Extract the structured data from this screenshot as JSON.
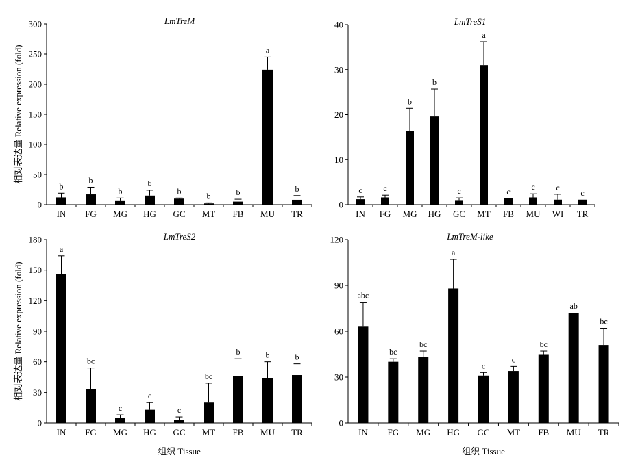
{
  "chart_data": [
    {
      "type": "bar",
      "title": "LmTreM",
      "ylabel": "相对表达量 Relative expression (fold)",
      "xlabel": "",
      "ylim": [
        0,
        300
      ],
      "yticks": [
        0,
        50,
        100,
        150,
        200,
        250,
        300
      ],
      "categories": [
        "IN",
        "FG",
        "MG",
        "HG",
        "GC",
        "MT",
        "FB",
        "MU",
        "TR"
      ],
      "values": [
        12,
        17,
        7,
        15,
        10,
        2,
        5,
        224,
        8
      ],
      "errors": [
        7,
        12,
        4,
        9,
        1,
        1,
        4,
        21,
        7
      ],
      "letters": [
        "b",
        "b",
        "b",
        "b",
        "b",
        "b",
        "b",
        "a",
        "b"
      ]
    },
    {
      "type": "bar",
      "title": "LmTreS1",
      "ylabel": "",
      "xlabel": "",
      "ylim": [
        0,
        40
      ],
      "yticks": [
        0,
        10,
        20,
        30,
        40
      ],
      "categories": [
        "IN",
        "FG",
        "MG",
        "HG",
        "GC",
        "MT",
        "FB",
        "MU",
        "WI",
        "TR"
      ],
      "values": [
        1.2,
        1.6,
        16.3,
        19.6,
        1.0,
        31.0,
        1.4,
        1.6,
        1.1,
        1.1
      ],
      "errors": [
        0.5,
        0.5,
        5.1,
        6.1,
        0.5,
        5.2,
        0.0,
        0.8,
        1.2,
        0.0
      ],
      "letters": [
        "c",
        "c",
        "b",
        "b",
        "c",
        "a",
        "c",
        "c",
        "c",
        "c"
      ]
    },
    {
      "type": "bar",
      "title": "LmTreS2",
      "ylabel": "相对表达量 Relative expression (fold)",
      "xlabel": "组织 Tissue",
      "ylim": [
        0,
        180
      ],
      "yticks": [
        0,
        30,
        60,
        90,
        120,
        150,
        180
      ],
      "categories": [
        "IN",
        "FG",
        "MG",
        "HG",
        "GC",
        "MT",
        "FB",
        "MU",
        "TR"
      ],
      "values": [
        146,
        33,
        5,
        13,
        3,
        20,
        46,
        44,
        47
      ],
      "errors": [
        18,
        21,
        3,
        7,
        3,
        19,
        17,
        16,
        11
      ],
      "letters": [
        "a",
        "bc",
        "c",
        "c",
        "c",
        "bc",
        "b",
        "b",
        "b"
      ]
    },
    {
      "type": "bar",
      "title": "LmTreM-like",
      "ylabel": "",
      "xlabel": "组织 Tissue",
      "ylim": [
        0,
        120
      ],
      "yticks": [
        0,
        30,
        60,
        90,
        120
      ],
      "categories": [
        "IN",
        "FG",
        "MG",
        "HG",
        "GC",
        "MT",
        "FB",
        "MU",
        "TR"
      ],
      "values": [
        63,
        40,
        43,
        88,
        31,
        34,
        45,
        72,
        51
      ],
      "errors": [
        16,
        2,
        4,
        19,
        2,
        3,
        2,
        0,
        11
      ],
      "letters": [
        "abc",
        "bc",
        "bc",
        "a",
        "c",
        "c",
        "bc",
        "ab",
        "bc"
      ]
    }
  ]
}
